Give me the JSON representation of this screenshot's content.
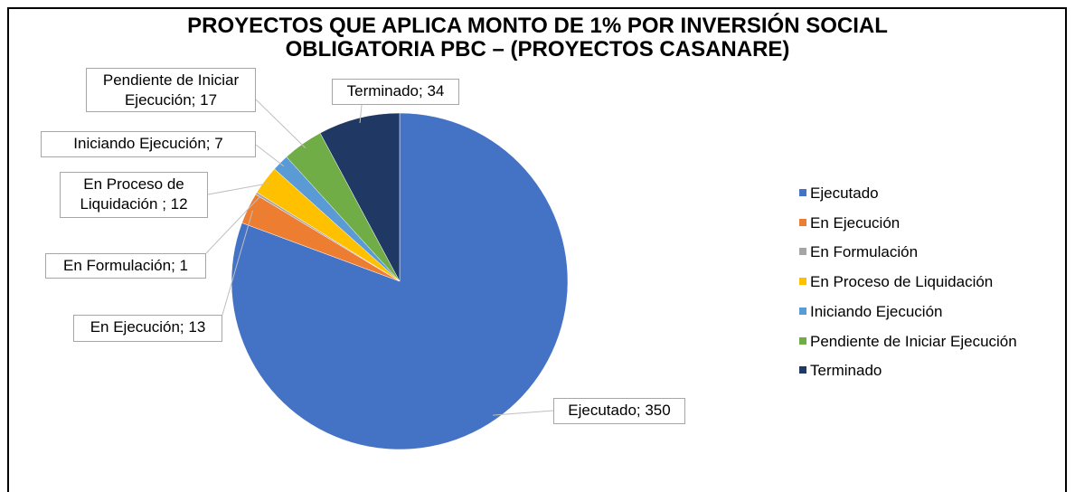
{
  "chart_data": {
    "type": "pie",
    "title": "PROYECTOS QUE APLICA MONTO DE 1% POR INVERSIÓN SOCIAL\nOBLIGATORIA PBC – (PROYECTOS CASANARE)",
    "categories": [
      "Ejecutado",
      "En Ejecución",
      "En Formulación",
      "En Proceso de Liquidación",
      "Iniciando Ejecución",
      "Pendiente de Iniciar Ejecución",
      "Terminado"
    ],
    "values": [
      350,
      13,
      1,
      12,
      7,
      17,
      34
    ],
    "value_labels": [
      "Ejecutado; 350",
      "En Ejecución; 13",
      "En Formulación; 1",
      "En Proceso de\nLiquidación ; 12",
      "Iniciando Ejecución; 7",
      "Pendiente de Iniciar\nEjecución; 17",
      "Terminado; 34"
    ],
    "colors": [
      "#4472c4",
      "#ed7d31",
      "#a5a5a5",
      "#ffc000",
      "#5b9bd5",
      "#70ad47",
      "#203864"
    ],
    "legend": "right"
  }
}
